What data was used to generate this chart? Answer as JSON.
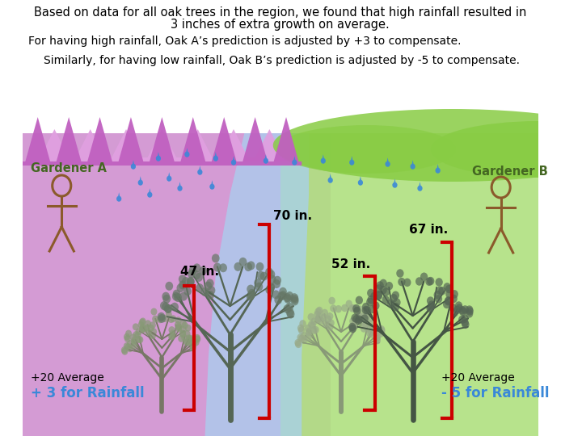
{
  "title_line1": "Based on data for all oak trees in the region, we found that high rainfall resulted in",
  "title_line2": "3 inches of extra growth on average.",
  "subtitle1": "For having high rainfall, Oak A’s prediction is adjusted by +3 to compensate.",
  "subtitle2": "Similarly, for having low rainfall, Oak B’s prediction is adjusted by -5 to compensate.",
  "gardener_a_label": "Gardener A",
  "gardener_b_label": "Gardener B",
  "tree1_height": "47 in.",
  "tree2_height": "70 in.",
  "tree3_height": "52 in.",
  "tree4_height": "67 in.",
  "left_avg": "+20 Average",
  "left_rain": "+ 3 for Rainfall",
  "right_avg": "+20 Average",
  "right_rain": "- 5 for Rainfall",
  "bg_color": "#ffffff",
  "purple_bg": "#d090d0",
  "green_bg": "#b0e080",
  "river_color": "#a8d0f0",
  "text_color": "#000000",
  "rain_color": "#3a88d8",
  "bracket_color": "#cc0000",
  "gardener_color": "#8b5a2b",
  "mountain_color": "#c060c0",
  "green_hill_color": "#88cc44"
}
